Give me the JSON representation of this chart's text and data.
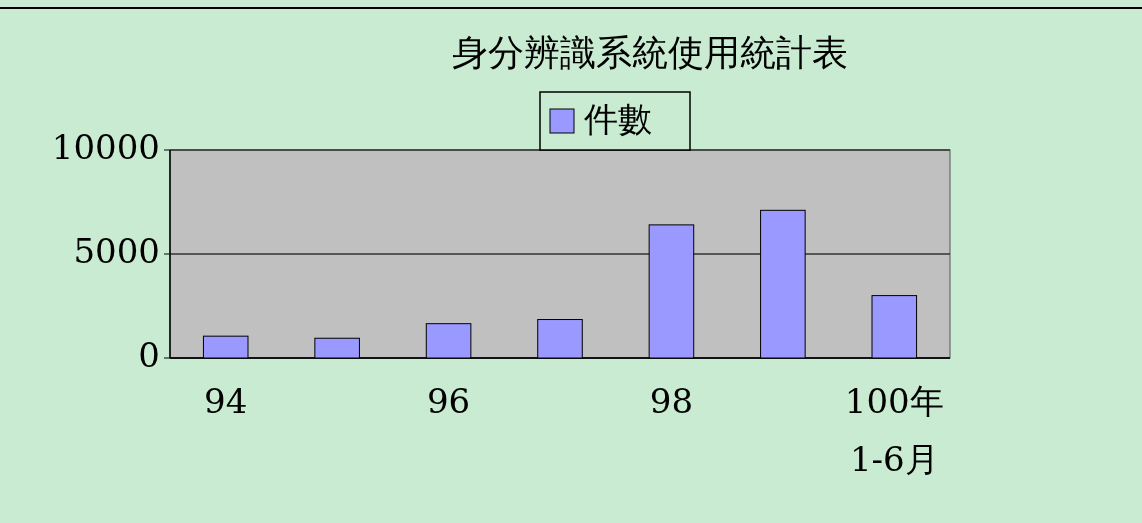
{
  "chart_data": {
    "type": "bar",
    "title": "身分辨識系統使用統計表",
    "categories": [
      "94",
      null,
      "96",
      null,
      "98",
      null,
      "100年 1-6月"
    ],
    "series": [
      {
        "name": "件數",
        "color": "#9999ff",
        "values": [
          1050,
          950,
          1650,
          1850,
          6400,
          7100,
          3000
        ]
      }
    ],
    "ylim": [
      0,
      10000
    ],
    "yticks": [
      0,
      5000,
      10000
    ],
    "grid": "y",
    "legend": "top"
  }
}
